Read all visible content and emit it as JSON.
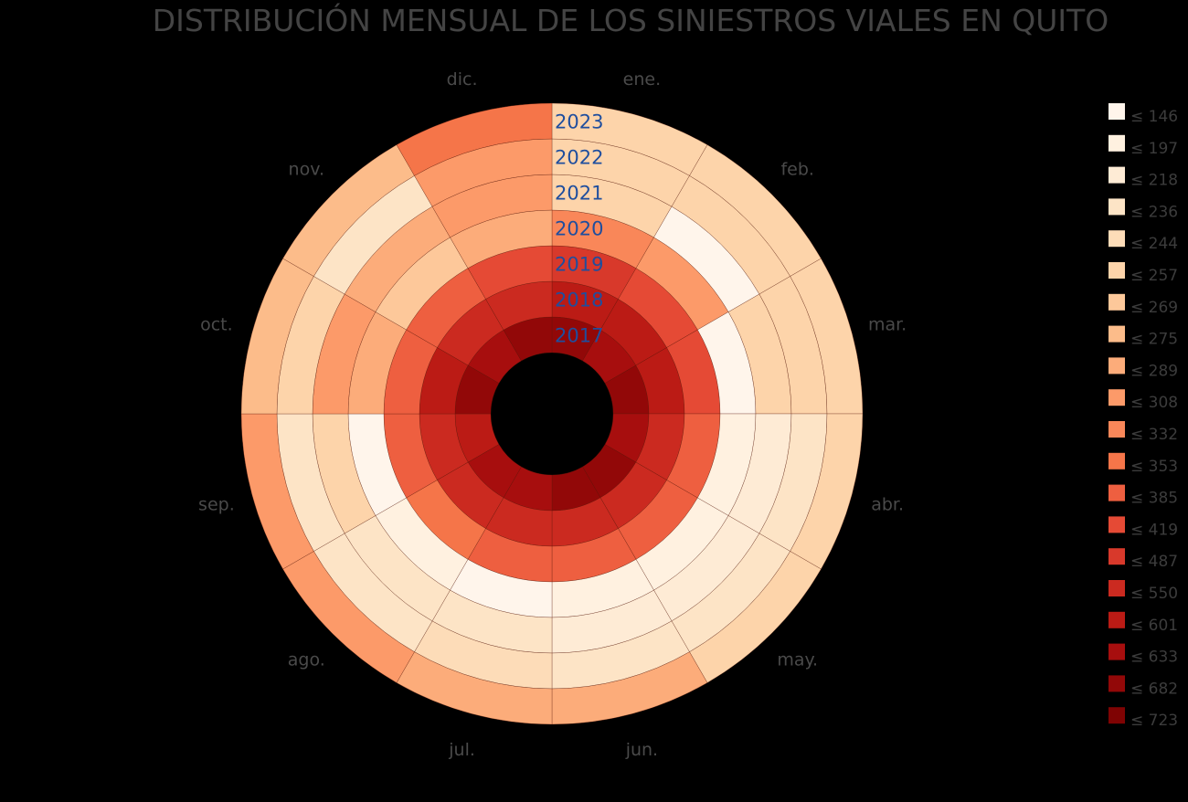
{
  "chart_data": {
    "type": "heatmap",
    "subtype": "radial",
    "title": "DISTRIBUCIÓN MENSUAL DE LOS SINIESTROS VIALES EN QUITO",
    "months": [
      "ene.",
      "feb.",
      "mar.",
      "abr.",
      "may.",
      "jun.",
      "jul.",
      "ago.",
      "sep.",
      "oct.",
      "nov.",
      "dic."
    ],
    "years": [
      "2017",
      "2018",
      "2019",
      "2020",
      "2021",
      "2022",
      "2023"
    ],
    "value_bins": [
      146,
      197,
      218,
      236,
      244,
      257,
      269,
      275,
      289,
      308,
      332,
      353,
      385,
      419,
      487,
      550,
      601,
      633,
      682,
      723
    ],
    "bin_colors": [
      "#fff5eb",
      "#fff1e0",
      "#feebd5",
      "#fde4c6",
      "#fddcb8",
      "#fdd4aa",
      "#fdc89a",
      "#fcbc8a",
      "#fcac7a",
      "#fc9a69",
      "#f98759",
      "#f57549",
      "#ee5f40",
      "#e54a35",
      "#d8392b",
      "#cb2a20",
      "#bb1b15",
      "#a70e0e",
      "#920808",
      "#7f0303"
    ],
    "legend_labels": [
      "≤ 146",
      "≤ 197",
      "≤ 218",
      "≤ 236",
      "≤ 244",
      "≤ 257",
      "≤ 269",
      "≤ 275",
      "≤ 289",
      "≤ 308",
      "≤ 332",
      "≤ 353",
      "≤ 385",
      "≤ 419",
      "≤ 487",
      "≤ 550",
      "≤ 601",
      "≤ 633",
      "≤ 682",
      "≤ 723"
    ],
    "values": {
      "2017": [
        682,
        633,
        682,
        633,
        682,
        682,
        633,
        633,
        601,
        682,
        633,
        682
      ],
      "2018": [
        601,
        601,
        601,
        550,
        550,
        550,
        550,
        550,
        550,
        601,
        550,
        550
      ],
      "2019": [
        487,
        419,
        419,
        385,
        385,
        385,
        385,
        353,
        385,
        385,
        385,
        419
      ],
      "2020": [
        332,
        308,
        146,
        197,
        197,
        197,
        146,
        197,
        146,
        289,
        269,
        289
      ],
      "2021": [
        257,
        146,
        257,
        218,
        218,
        218,
        236,
        236,
        257,
        308,
        289,
        308
      ],
      "2022": [
        257,
        257,
        257,
        236,
        236,
        236,
        244,
        236,
        236,
        257,
        236,
        308
      ],
      "2023": [
        257,
        257,
        257,
        257,
        257,
        289,
        289,
        308,
        308,
        275,
        275,
        353
      ]
    }
  }
}
